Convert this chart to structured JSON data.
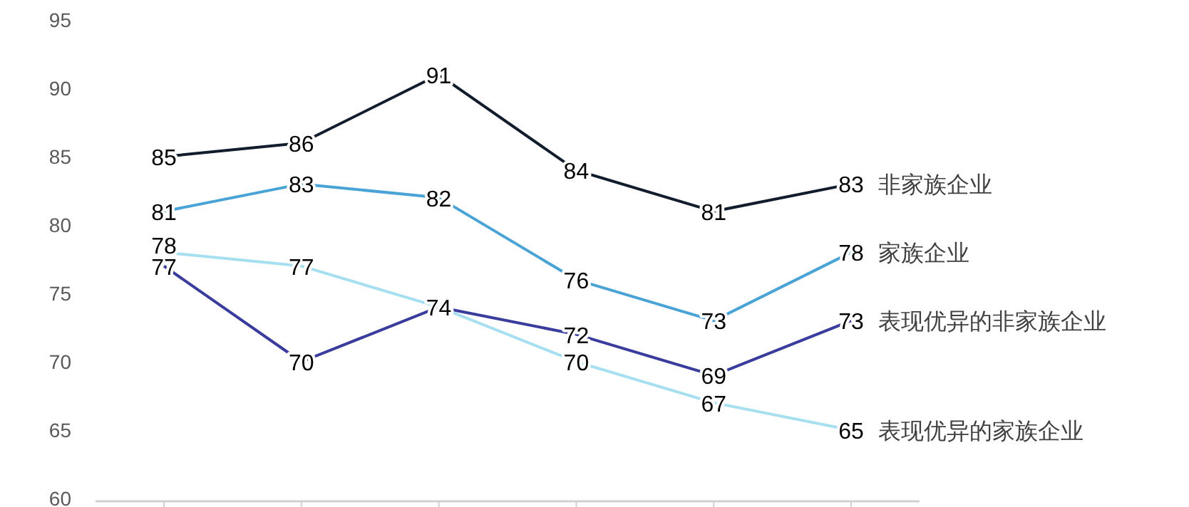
{
  "chart_data": {
    "type": "line",
    "categories": [
      null,
      null,
      null,
      null,
      null,
      null
    ],
    "series": [
      {
        "name": "非家族企业",
        "color": "#111c2c",
        "values": [
          85,
          86,
          91,
          84,
          81,
          83
        ],
        "value_labels": [
          "85",
          "86",
          "91",
          "84",
          "81",
          "83"
        ]
      },
      {
        "name": "家族企业",
        "color": "#4aa3d6",
        "values": [
          81,
          83,
          82,
          76,
          73,
          78
        ],
        "value_labels": [
          "81",
          "83",
          "82",
          "76",
          "73",
          "78"
        ]
      },
      {
        "name": "表现优异的非家族企业",
        "color": "#393c9c",
        "values": [
          77,
          70,
          74,
          72,
          69,
          73
        ],
        "value_labels": [
          "77",
          "70",
          "74",
          "72",
          "69",
          "73"
        ]
      },
      {
        "name": "表现优异的家族企业",
        "color": "#a6e0f0",
        "values": [
          78,
          77,
          74,
          70,
          67,
          65
        ],
        "value_labels": [
          "78",
          "77",
          null,
          "70",
          "67",
          "65"
        ]
      }
    ],
    "ylim": [
      60,
      95
    ],
    "yticks": [
      60,
      65,
      70,
      75,
      80,
      85,
      90,
      95
    ],
    "grid": false,
    "legend": false,
    "marker": "none",
    "line_style": "solid"
  }
}
